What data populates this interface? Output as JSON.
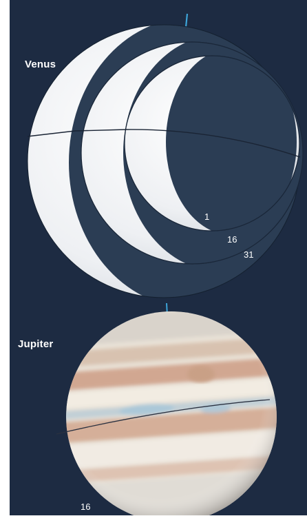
{
  "venus": {
    "name": "Venus",
    "phase_dates": [
      "1",
      "16",
      "31"
    ]
  },
  "jupiter": {
    "name": "Jupiter",
    "date": "16"
  },
  "colors": {
    "background": "#1d2b42",
    "disk_shadow": "#2b3d54",
    "lit": "#f4f4f4",
    "axis": "#3da4d8"
  }
}
